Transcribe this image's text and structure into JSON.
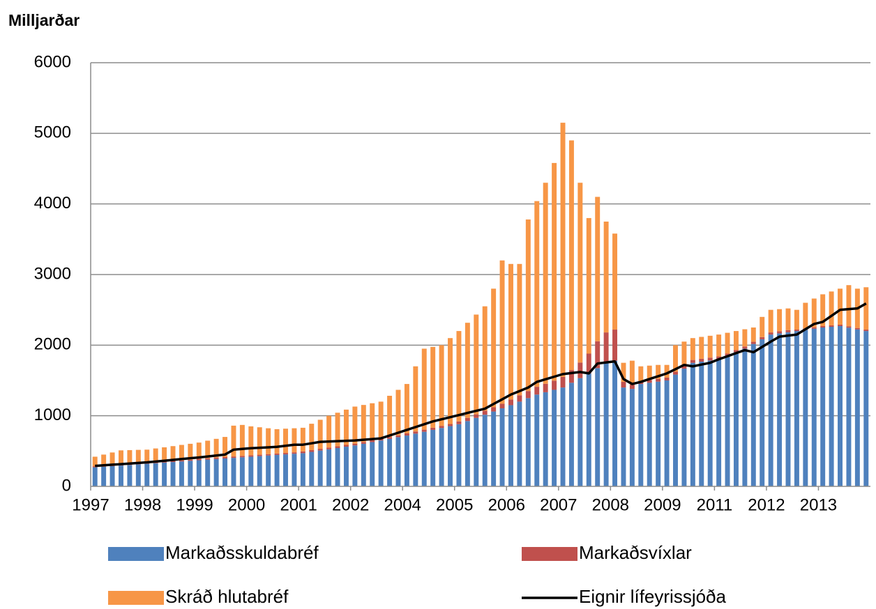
{
  "chart_data": {
    "type": "bar",
    "stacked": true,
    "y_label": "Milljarðar",
    "categories": [
      "1997",
      null,
      null,
      null,
      null,
      null,
      "1998",
      null,
      null,
      null,
      null,
      null,
      "1999",
      null,
      null,
      null,
      null,
      null,
      "2000",
      null,
      null,
      null,
      null,
      null,
      "2001",
      null,
      null,
      null,
      null,
      null,
      "2002",
      null,
      null,
      null,
      null,
      null,
      "2004",
      null,
      null,
      null,
      null,
      null,
      "2005",
      null,
      null,
      null,
      null,
      null,
      "2006",
      null,
      null,
      null,
      null,
      null,
      "2007",
      null,
      null,
      null,
      null,
      null,
      "2008",
      null,
      null,
      null,
      null,
      null,
      "2009",
      null,
      null,
      null,
      null,
      null,
      "2011",
      null,
      null,
      null,
      null,
      null,
      "2012",
      null,
      null,
      null,
      null,
      null,
      "2013",
      null,
      null,
      null,
      null,
      null
    ],
    "ylim": [
      0,
      6000
    ],
    "yticks": [
      0,
      1000,
      2000,
      3000,
      4000,
      5000,
      6000
    ],
    "grid": true,
    "legend": "bottom",
    "series": [
      {
        "name": "Markaðsskuldabréf",
        "color": "#4f81bd",
        "values": [
          270,
          278,
          287,
          295,
          303,
          312,
          320,
          328,
          337,
          345,
          353,
          362,
          370,
          378,
          387,
          395,
          403,
          412,
          420,
          428,
          437,
          445,
          453,
          462,
          470,
          488,
          507,
          525,
          543,
          562,
          580,
          603,
          627,
          650,
          673,
          697,
          720,
          747,
          773,
          800,
          827,
          853,
          880,
          925,
          970,
          1015,
          1060,
          1105,
          1150,
          1200,
          1250,
          1300,
          1333,
          1367,
          1400,
          1467,
          1533,
          1600,
          1675,
          1750,
          1780,
          1400,
          1380,
          1450,
          1467,
          1483,
          1500,
          1583,
          1667,
          1750,
          1767,
          1783,
          1800,
          1850,
          1900,
          1950,
          2017,
          2083,
          2150,
          2167,
          2183,
          2200,
          2217,
          2233,
          2250,
          2260,
          2270,
          2247,
          2223,
          2200
        ]
      },
      {
        "name": "Markaðsvíxlar",
        "color": "#c0504d",
        "values": [
          15,
          15,
          15,
          15,
          15,
          15,
          15,
          15,
          15,
          15,
          15,
          15,
          20,
          20,
          20,
          20,
          20,
          20,
          20,
          20,
          20,
          20,
          20,
          20,
          25,
          25,
          25,
          25,
          25,
          25,
          25,
          25,
          25,
          25,
          25,
          25,
          30,
          30,
          30,
          30,
          30,
          30,
          40,
          45,
          50,
          55,
          60,
          65,
          80,
          90,
          100,
          110,
          120,
          130,
          150,
          180,
          220,
          280,
          380,
          430,
          440,
          80,
          60,
          40,
          40,
          40,
          40,
          40,
          40,
          40,
          40,
          40,
          40,
          30,
          30,
          30,
          30,
          30,
          30,
          30,
          30,
          20,
          20,
          20,
          20,
          20,
          20,
          20,
          20,
          20
        ]
      },
      {
        "name": "Skráð hlutabréf",
        "color": "#f79646",
        "values": [
          135,
          157,
          178,
          200,
          195,
          190,
          185,
          194,
          201,
          210,
          219,
          226,
          230,
          249,
          266,
          285,
          437,
          438,
          410,
          389,
          366,
          345,
          344,
          341,
          335,
          374,
          411,
          450,
          475,
          500,
          525,
          525,
          525,
          525,
          585,
          645,
          700,
          923,
          1147,
          1145,
          1143,
          1217,
          1280,
          1347,
          1413,
          1480,
          1680,
          2030,
          1920,
          1860,
          2430,
          2630,
          2847,
          3083,
          3600,
          3253,
          2547,
          1920,
          2045,
          1570,
          1360,
          270,
          340,
          210,
          203,
          197,
          180,
          377,
          343,
          310,
          310,
          310,
          310,
          295,
          270,
          245,
          203,
          287,
          320,
          313,
          307,
          280,
          363,
          407,
          450,
          480,
          510,
          583,
          557,
          600
        ]
      },
      {
        "name": "Eignir lífeyrissjóða",
        "color": "#000000",
        "type": "line",
        "values": [
          290,
          298,
          307,
          315,
          323,
          332,
          340,
          352,
          363,
          375,
          387,
          398,
          410,
          423,
          437,
          450,
          520,
          530,
          540,
          547,
          553,
          560,
          575,
          590,
          590,
          610,
          630,
          635,
          640,
          645,
          650,
          660,
          670,
          680,
          720,
          760,
          800,
          840,
          880,
          920,
          950,
          980,
          1010,
          1040,
          1070,
          1100,
          1167,
          1233,
          1300,
          1350,
          1400,
          1480,
          1517,
          1553,
          1590,
          1605,
          1620,
          1600,
          1740,
          1755,
          1770,
          1520,
          1450,
          1480,
          1520,
          1560,
          1600,
          1660,
          1720,
          1700,
          1725,
          1750,
          1800,
          1843,
          1887,
          1930,
          1900,
          1975,
          2050,
          2120,
          2135,
          2150,
          2225,
          2300,
          2330,
          2415,
          2500,
          2510,
          2520,
          2590
        ]
      }
    ]
  }
}
